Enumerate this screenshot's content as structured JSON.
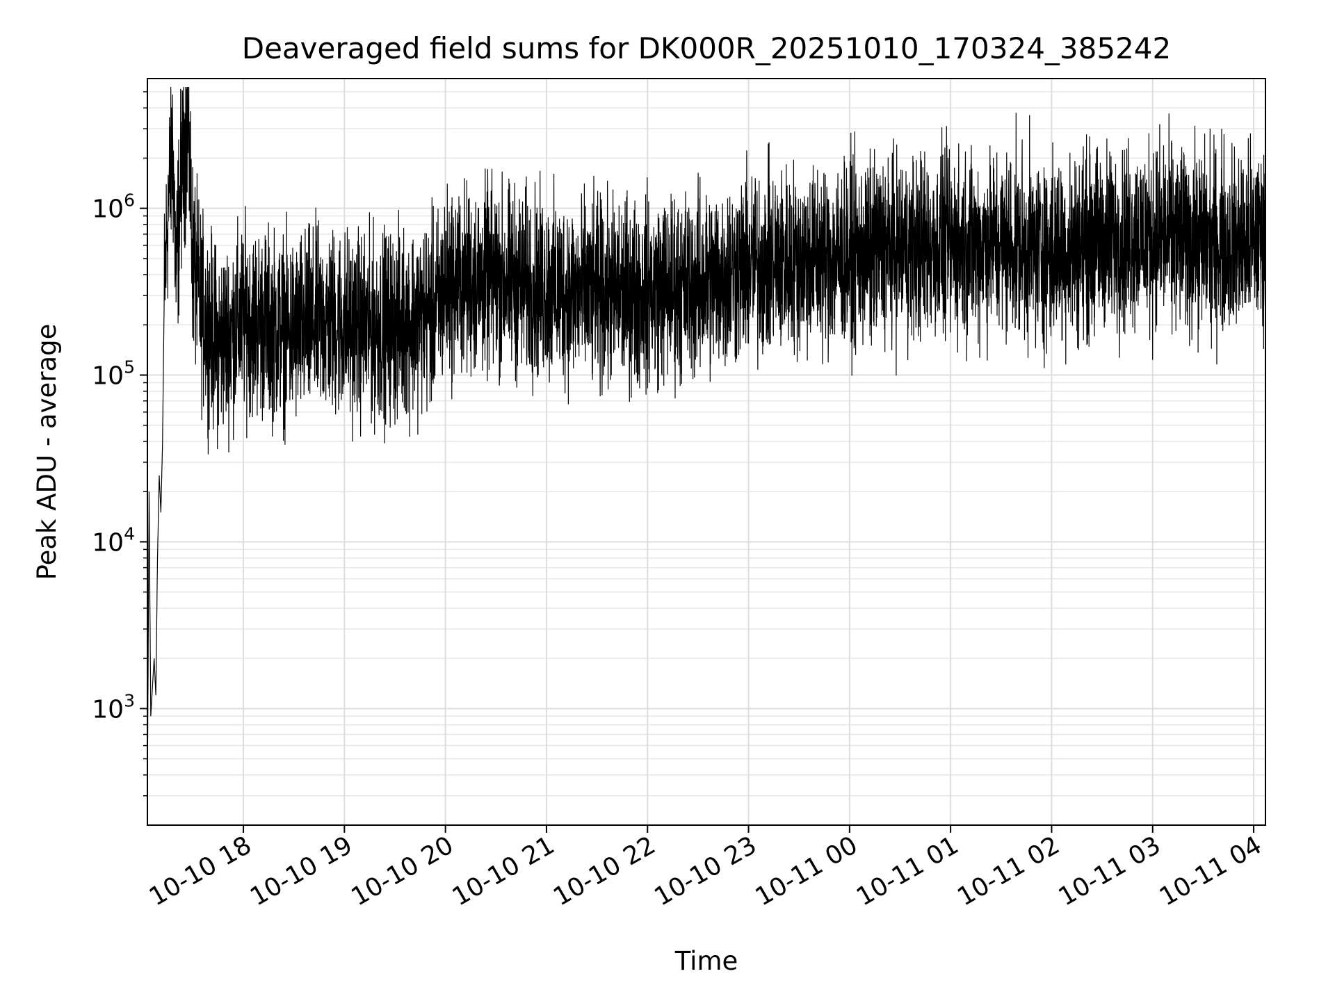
{
  "chart_data": {
    "type": "line",
    "title": "Deaveraged field sums for DK000R_20251010_170324_385242",
    "xlabel": "Time",
    "ylabel": "Peak ADU - average",
    "yscale": "log",
    "ylim": [
      200,
      6000000
    ],
    "xlim": [
      "2025-10-10 17:03",
      "2025-10-11 04:07"
    ],
    "grid": true,
    "line_color": "#000000",
    "x_ticks": [
      {
        "time": "2025-10-10 18:00",
        "label": "10-10 18"
      },
      {
        "time": "2025-10-10 19:00",
        "label": "10-10 19"
      },
      {
        "time": "2025-10-10 20:00",
        "label": "10-10 20"
      },
      {
        "time": "2025-10-10 21:00",
        "label": "10-10 21"
      },
      {
        "time": "2025-10-10 22:00",
        "label": "10-10 22"
      },
      {
        "time": "2025-10-10 23:00",
        "label": "10-10 23"
      },
      {
        "time": "2025-10-11 00:00",
        "label": "10-11 00"
      },
      {
        "time": "2025-10-11 01:00",
        "label": "10-11 01"
      },
      {
        "time": "2025-10-11 02:00",
        "label": "10-11 02"
      },
      {
        "time": "2025-10-11 03:00",
        "label": "10-11 03"
      },
      {
        "time": "2025-10-11 04:00",
        "label": "10-11 04"
      }
    ],
    "y_ticks": [
      {
        "value": 1000,
        "base": "10",
        "exp": "3"
      },
      {
        "value": 10000,
        "base": "10",
        "exp": "4"
      },
      {
        "value": 100000,
        "base": "10",
        "exp": "5"
      },
      {
        "value": 1000000,
        "base": "10",
        "exp": "6"
      }
    ],
    "series": [
      {
        "points": [
          [
            "2025-10-10 17:03",
            300
          ],
          [
            "2025-10-10 17:04",
            20000
          ],
          [
            "2025-10-10 17:05",
            900
          ],
          [
            "2025-10-10 17:07",
            2000
          ],
          [
            "2025-10-10 17:08",
            1200
          ],
          [
            "2025-10-10 17:09",
            8000
          ],
          [
            "2025-10-10 17:10",
            25000
          ],
          [
            "2025-10-10 17:11",
            15000
          ],
          [
            "2025-10-10 17:12",
            40000
          ],
          [
            "2025-10-10 17:13",
            300000
          ],
          [
            "2025-10-10 17:15",
            900000
          ],
          [
            "2025-10-10 17:18",
            2500000
          ],
          [
            "2025-10-10 17:20",
            400000
          ],
          [
            "2025-10-10 17:23",
            1500000
          ],
          [
            "2025-10-10 17:27",
            3500000
          ],
          [
            "2025-10-10 17:30",
            500000
          ],
          [
            "2025-10-10 17:35",
            250000
          ],
          [
            "2025-10-10 17:45",
            150000
          ],
          [
            "2025-10-10 18:00",
            220000
          ],
          [
            "2025-10-10 18:15",
            200000
          ],
          [
            "2025-10-10 18:30",
            180000
          ],
          [
            "2025-10-10 18:45",
            210000
          ],
          [
            "2025-10-10 19:00",
            200000
          ],
          [
            "2025-10-10 19:15",
            190000
          ],
          [
            "2025-10-10 19:30",
            200000
          ],
          [
            "2025-10-10 19:45",
            220000
          ],
          [
            "2025-10-10 19:55",
            250000
          ],
          [
            "2025-10-10 20:00",
            350000
          ],
          [
            "2025-10-10 20:30",
            380000
          ],
          [
            "2025-10-10 21:00",
            330000
          ],
          [
            "2025-10-10 21:30",
            300000
          ],
          [
            "2025-10-10 22:00",
            320000
          ],
          [
            "2025-10-10 22:30",
            350000
          ],
          [
            "2025-10-10 23:00",
            450000
          ],
          [
            "2025-10-10 23:30",
            500000
          ],
          [
            "2025-10-11 00:00",
            520000
          ],
          [
            "2025-10-11 00:30",
            580000
          ],
          [
            "2025-10-11 01:00",
            600000
          ],
          [
            "2025-10-11 01:30",
            620000
          ],
          [
            "2025-10-11 02:00",
            550000
          ],
          [
            "2025-10-11 02:30",
            650000
          ],
          [
            "2025-10-11 03:00",
            700000
          ],
          [
            "2025-10-11 03:30",
            650000
          ],
          [
            "2025-10-11 03:57",
            600000
          ],
          [
            "2025-10-11 04:07",
            750000
          ]
        ]
      }
    ]
  }
}
